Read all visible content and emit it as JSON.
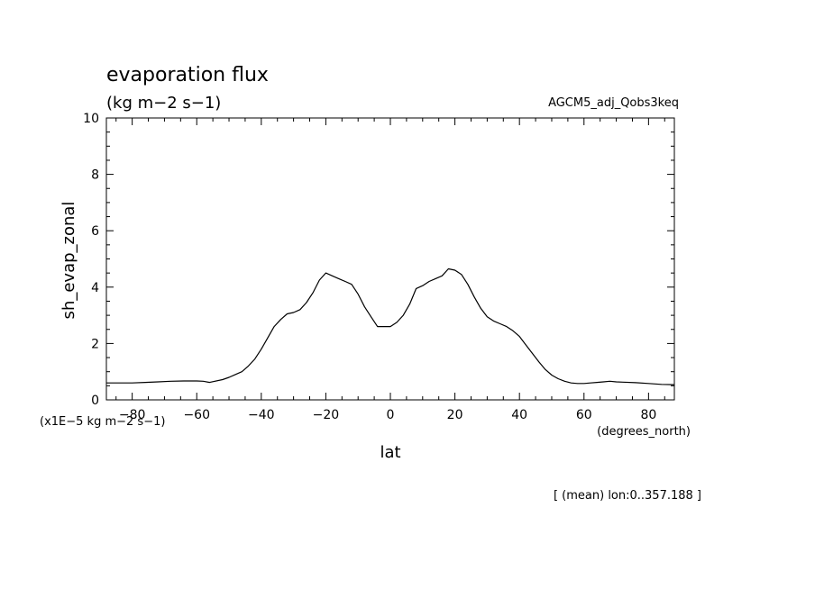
{
  "chart_data": {
    "type": "line",
    "title": "evaporation flux",
    "units": "(kg m−2 s−1)",
    "dataset": "AGCM5_adj_Qobs3keq",
    "xlabel": "lat",
    "ylabel": "sh_evap_zonal",
    "x_units": "(degrees_north)",
    "y_scale_note": "(x1E−5 kg m−2 s−1)",
    "footnote": "[ (mean) lon:0..357.188 ]",
    "xlim": [
      -88,
      88
    ],
    "ylim": [
      0,
      10
    ],
    "x_ticks": [
      -80,
      -60,
      -40,
      -20,
      0,
      20,
      40,
      60,
      80
    ],
    "x_tick_labels": [
      "−80",
      "−60",
      "−40",
      "−20",
      "0",
      "20",
      "40",
      "60",
      "80"
    ],
    "y_ticks": [
      0,
      2,
      4,
      6,
      8,
      10
    ],
    "y_tick_labels": [
      "0",
      "2",
      "4",
      "6",
      "8",
      "10"
    ],
    "grid": false,
    "series": [
      {
        "color": "#000000",
        "x": [
          -88,
          -84,
          -80,
          -76,
          -72,
          -68,
          -64,
          -60,
          -58,
          -56,
          -52,
          -50,
          -48,
          -46,
          -44,
          -42,
          -40,
          -38,
          -36,
          -34,
          -32,
          -30,
          -28,
          -26,
          -24,
          -22,
          -20,
          -18,
          -16,
          -14,
          -12,
          -10,
          -8,
          -6,
          -4,
          -2,
          0,
          2,
          4,
          6,
          8,
          10,
          12,
          14,
          16,
          18,
          20,
          22,
          24,
          26,
          28,
          30,
          32,
          34,
          36,
          38,
          40,
          42,
          44,
          46,
          48,
          50,
          52,
          54,
          56,
          58,
          60,
          62,
          64,
          66,
          68,
          70,
          72,
          76,
          80,
          84,
          88
        ],
        "y": [
          0.6,
          0.6,
          0.6,
          0.62,
          0.64,
          0.66,
          0.67,
          0.67,
          0.66,
          0.62,
          0.72,
          0.8,
          0.9,
          1.0,
          1.2,
          1.45,
          1.8,
          2.2,
          2.6,
          2.85,
          3.05,
          3.1,
          3.2,
          3.45,
          3.8,
          4.25,
          4.5,
          4.4,
          4.3,
          4.2,
          4.1,
          3.75,
          3.3,
          2.95,
          2.6,
          2.6,
          2.6,
          2.75,
          3.0,
          3.4,
          3.95,
          4.05,
          4.2,
          4.3,
          4.4,
          4.65,
          4.6,
          4.45,
          4.1,
          3.65,
          3.25,
          2.95,
          2.8,
          2.7,
          2.6,
          2.45,
          2.25,
          1.95,
          1.65,
          1.35,
          1.08,
          0.88,
          0.75,
          0.66,
          0.6,
          0.58,
          0.58,
          0.6,
          0.62,
          0.64,
          0.66,
          0.64,
          0.63,
          0.61,
          0.58,
          0.55,
          0.54
        ]
      }
    ]
  }
}
